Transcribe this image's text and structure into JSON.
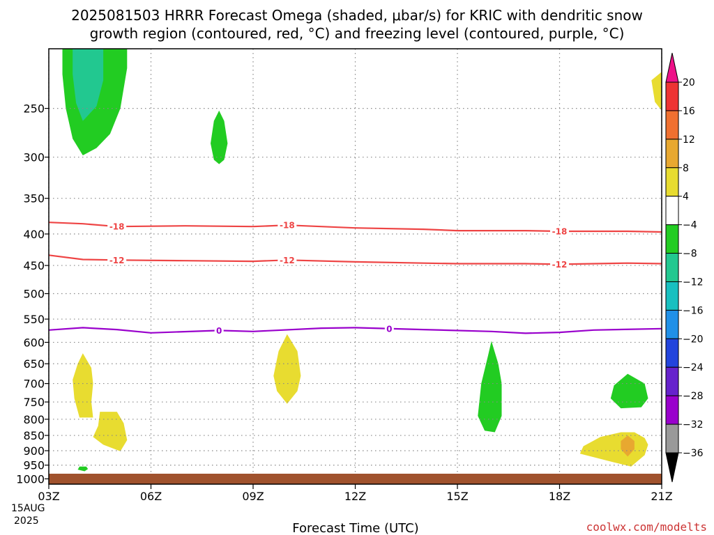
{
  "title_lines": [
    "2025081503 HRRR Forecast Omega (shaded, μbar/s) for KRIC with dendritic snow",
    "growth region (contoured, red, °C) and freezing level (contoured, purple, °C)"
  ],
  "xlabel": "Forecast Time (UTC)",
  "date_labels": [
    "15AUG",
    "2025"
  ],
  "credit": "coolwx.com/modelts",
  "colors": {
    "dgz": "#ee4444",
    "freezing": "#9900cc",
    "ground": "#a0522d",
    "grid": "#888888",
    "credit": "#cc3333"
  },
  "chart_data": {
    "type": "heatmap",
    "x_ticks": [
      {
        "h": 0,
        "label": "03Z"
      },
      {
        "h": 3,
        "label": "06Z"
      },
      {
        "h": 6,
        "label": "09Z"
      },
      {
        "h": 9,
        "label": "12Z"
      },
      {
        "h": 12,
        "label": "15Z"
      },
      {
        "h": 15,
        "label": "18Z"
      },
      {
        "h": 18,
        "label": "21Z"
      }
    ],
    "xlim": [
      0,
      18
    ],
    "y_ticks": [
      250,
      300,
      350,
      400,
      450,
      500,
      550,
      600,
      650,
      700,
      750,
      800,
      850,
      900,
      950,
      1000
    ],
    "ylim": [
      200,
      1020
    ],
    "y_scale": "log",
    "y_inverted": true,
    "grid": true,
    "colorbar": {
      "labels": [
        "20",
        "16",
        "12",
        "8",
        "4",
        "−4",
        "−8",
        "−12",
        "−16",
        "−20",
        "−24",
        "−28",
        "−32",
        "−36"
      ],
      "bins": [
        {
          "color": "#ee3333"
        },
        {
          "color": "#f07030"
        },
        {
          "color": "#e8a830"
        },
        {
          "color": "#e8dc30"
        },
        {
          "color": "#ffffff"
        },
        {
          "color": "#22cc22"
        },
        {
          "color": "#22c890"
        },
        {
          "color": "#18c0c0"
        },
        {
          "color": "#2090e8"
        },
        {
          "color": "#2244dd"
        },
        {
          "color": "#6622cc"
        },
        {
          "color": "#9900cc"
        },
        {
          "color": "#999999"
        }
      ],
      "top_color": "#ee1188",
      "bottom_color": "#000000"
    },
    "contours": [
      {
        "name": "-18",
        "color": "#ee4444",
        "points": [
          [
            0,
            383
          ],
          [
            1,
            385
          ],
          [
            2,
            389
          ],
          [
            4,
            388
          ],
          [
            6,
            389
          ],
          [
            7,
            387
          ],
          [
            9,
            391
          ],
          [
            11,
            393
          ],
          [
            12,
            395
          ],
          [
            14,
            395
          ],
          [
            15,
            396
          ],
          [
            17,
            396
          ],
          [
            18,
            397
          ]
        ],
        "labels": [
          {
            "h": 2,
            "text": "-18"
          },
          {
            "h": 7,
            "text": "-18"
          },
          {
            "h": 15,
            "text": "-18"
          }
        ]
      },
      {
        "name": "-12",
        "color": "#ee4444",
        "points": [
          [
            0,
            433
          ],
          [
            1,
            440
          ],
          [
            2,
            441
          ],
          [
            4,
            442
          ],
          [
            6,
            443
          ],
          [
            7,
            441
          ],
          [
            9,
            444
          ],
          [
            11,
            446
          ],
          [
            12,
            447
          ],
          [
            14,
            447
          ],
          [
            15,
            448
          ],
          [
            17,
            446
          ],
          [
            18,
            447
          ]
        ],
        "labels": [
          {
            "h": 2,
            "text": "-12"
          },
          {
            "h": 7,
            "text": "-12"
          },
          {
            "h": 15,
            "text": "-12"
          }
        ]
      },
      {
        "name": "0",
        "color": "#9900cc",
        "points": [
          [
            0,
            573
          ],
          [
            1,
            568
          ],
          [
            2,
            572
          ],
          [
            3,
            579
          ],
          [
            5,
            574
          ],
          [
            6,
            576
          ],
          [
            8,
            569
          ],
          [
            9,
            568
          ],
          [
            11,
            572
          ],
          [
            13,
            576
          ],
          [
            14,
            580
          ],
          [
            15,
            578
          ],
          [
            16,
            573
          ],
          [
            18,
            570
          ]
        ],
        "labels": [
          {
            "h": 5,
            "text": "0"
          },
          {
            "h": 10,
            "text": "0"
          }
        ]
      }
    ],
    "regions": [
      {
        "color": "#22cc22",
        "points": [
          [
            0.4,
            200
          ],
          [
            0.8,
            200
          ],
          [
            1.0,
            200
          ],
          [
            2.3,
            200
          ],
          [
            2.3,
            215
          ],
          [
            2.1,
            250
          ],
          [
            1.8,
            275
          ],
          [
            1.4,
            290
          ],
          [
            1.0,
            298
          ],
          [
            0.7,
            280
          ],
          [
            0.5,
            250
          ],
          [
            0.4,
            220
          ]
        ]
      },
      {
        "color": "#22c890",
        "points": [
          [
            0.7,
            200
          ],
          [
            1.6,
            200
          ],
          [
            1.6,
            225
          ],
          [
            1.4,
            248
          ],
          [
            1.0,
            262
          ],
          [
            0.8,
            245
          ],
          [
            0.7,
            220
          ]
        ]
      },
      {
        "color": "#22cc22",
        "points": [
          [
            5.0,
            252
          ],
          [
            5.15,
            262
          ],
          [
            5.25,
            285
          ],
          [
            5.15,
            303
          ],
          [
            5.0,
            308
          ],
          [
            4.85,
            303
          ],
          [
            4.75,
            285
          ],
          [
            4.85,
            262
          ]
        ]
      },
      {
        "color": "#e8dc30",
        "points": [
          [
            18,
            218
          ],
          [
            17.7,
            225
          ],
          [
            17.8,
            244
          ],
          [
            18,
            252
          ]
        ]
      },
      {
        "color": "#e8dc30",
        "points": [
          [
            1.0,
            625
          ],
          [
            1.25,
            660
          ],
          [
            1.3,
            700
          ],
          [
            1.25,
            750
          ],
          [
            1.3,
            795
          ],
          [
            0.9,
            795
          ],
          [
            0.75,
            740
          ],
          [
            0.7,
            690
          ],
          [
            0.85,
            650
          ]
        ]
      },
      {
        "color": "#e8dc30",
        "points": [
          [
            1.5,
            778
          ],
          [
            2.0,
            778
          ],
          [
            2.2,
            812
          ],
          [
            2.3,
            865
          ],
          [
            2.1,
            902
          ],
          [
            1.6,
            880
          ],
          [
            1.3,
            855
          ],
          [
            1.45,
            820
          ]
        ]
      },
      {
        "color": "#22cc22",
        "points": [
          [
            0.9,
            955
          ],
          [
            1.1,
            955
          ],
          [
            1.15,
            964
          ],
          [
            1.05,
            972
          ],
          [
            0.85,
            966
          ]
        ]
      },
      {
        "color": "#e8dc30",
        "points": [
          [
            7.0,
            582
          ],
          [
            7.3,
            620
          ],
          [
            7.4,
            680
          ],
          [
            7.3,
            720
          ],
          [
            7.0,
            755
          ],
          [
            6.7,
            720
          ],
          [
            6.6,
            680
          ],
          [
            6.75,
            620
          ]
        ]
      },
      {
        "color": "#22cc22",
        "points": [
          [
            13.0,
            597
          ],
          [
            13.2,
            650
          ],
          [
            13.3,
            700
          ],
          [
            13.3,
            790
          ],
          [
            13.1,
            840
          ],
          [
            12.8,
            835
          ],
          [
            12.6,
            790
          ],
          [
            12.7,
            700
          ],
          [
            12.9,
            630
          ]
        ]
      },
      {
        "color": "#22cc22",
        "points": [
          [
            17.0,
            675
          ],
          [
            17.5,
            700
          ],
          [
            17.6,
            740
          ],
          [
            17.4,
            765
          ],
          [
            16.8,
            768
          ],
          [
            16.5,
            740
          ],
          [
            16.6,
            705
          ]
        ]
      },
      {
        "color": "#e8dc30",
        "points": [
          [
            16.8,
            840
          ],
          [
            17.2,
            840
          ],
          [
            17.5,
            858
          ],
          [
            17.6,
            880
          ],
          [
            17.5,
            915
          ],
          [
            17.1,
            955
          ],
          [
            16.6,
            940
          ],
          [
            15.6,
            910
          ],
          [
            15.7,
            885
          ],
          [
            16.2,
            855
          ]
        ]
      },
      {
        "color": "#e8a830",
        "points": [
          [
            17.0,
            850
          ],
          [
            17.2,
            868
          ],
          [
            17.2,
            895
          ],
          [
            17.0,
            920
          ],
          [
            16.8,
            895
          ],
          [
            16.8,
            868
          ]
        ]
      }
    ]
  }
}
